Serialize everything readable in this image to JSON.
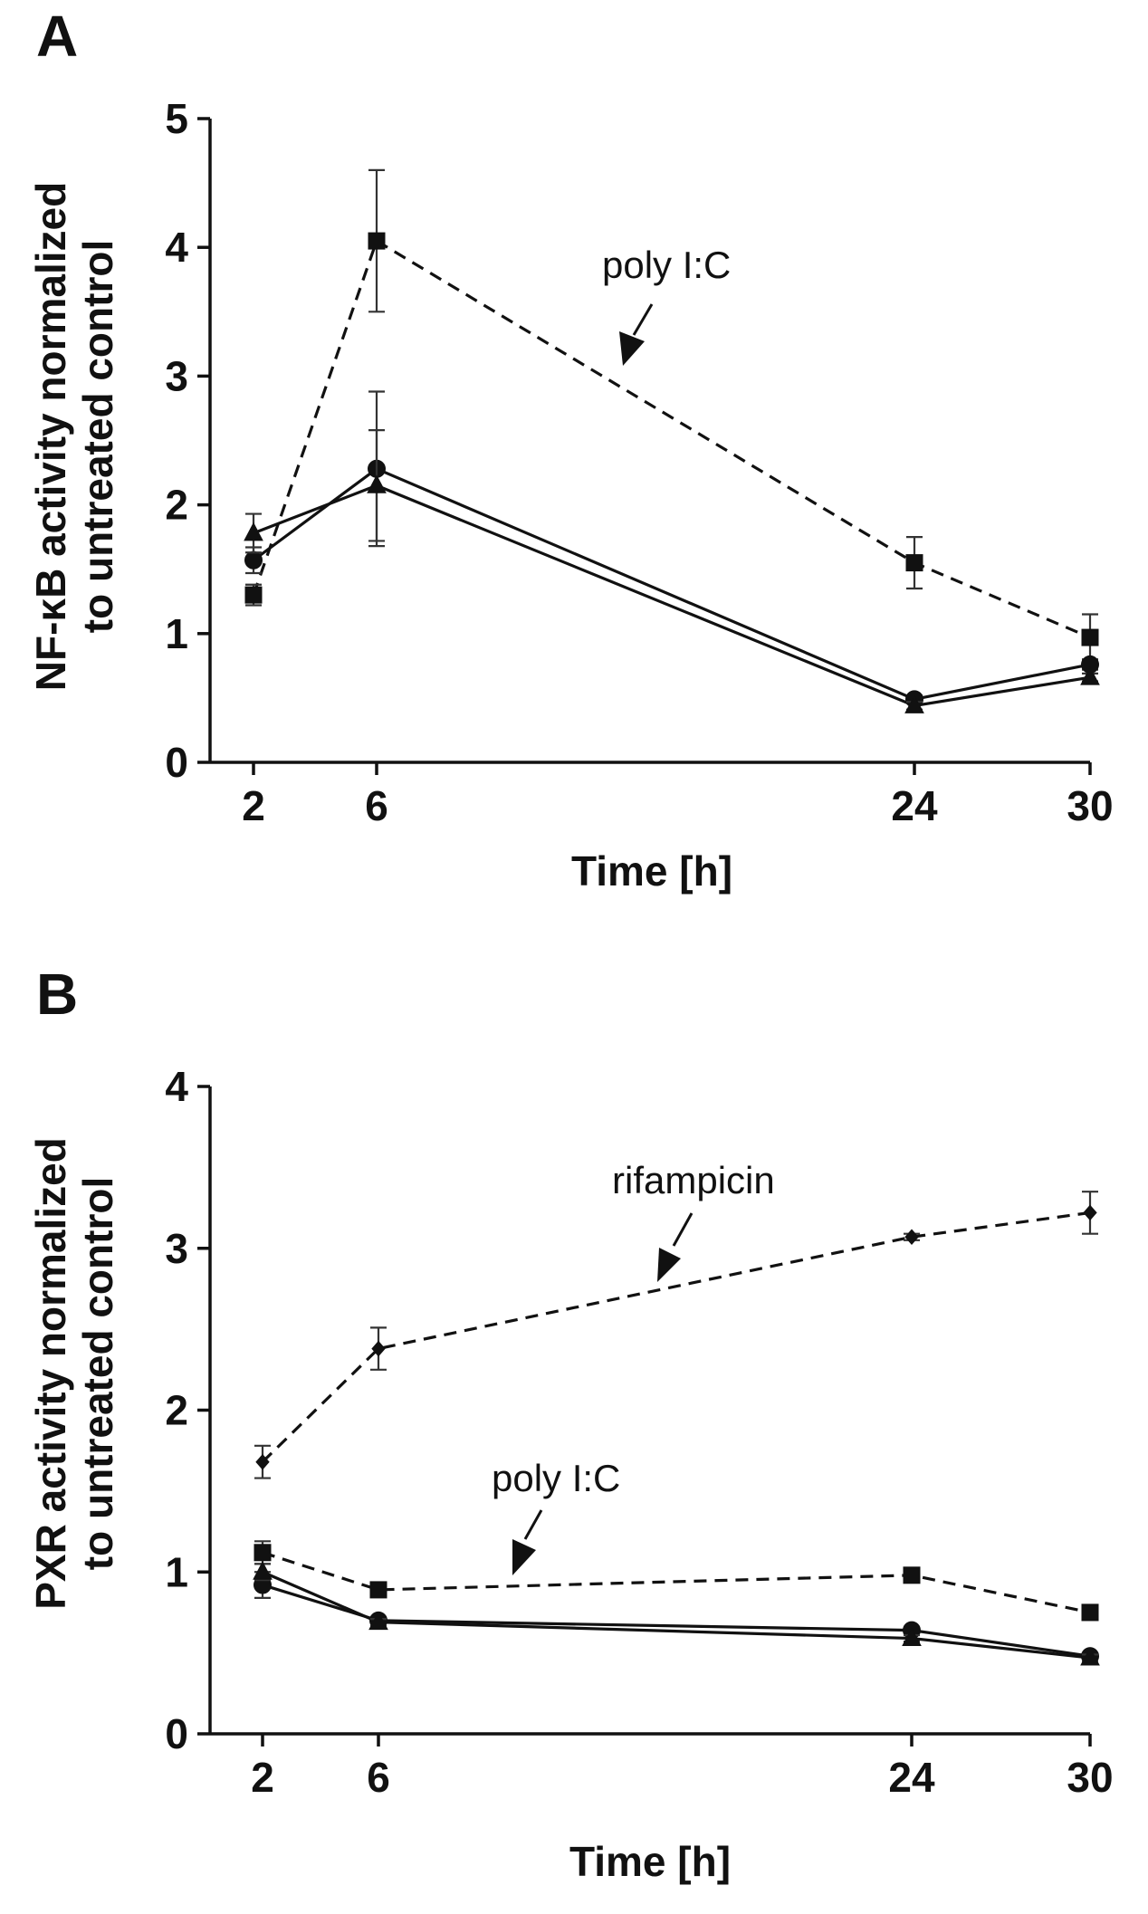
{
  "chart_data": [
    {
      "panel": "A",
      "type": "line",
      "title": "",
      "xlabel": "Time [h]",
      "ylabel_lines": [
        "NF-κB activity normalized",
        "to untreated control"
      ],
      "x": [
        2,
        6,
        24,
        30
      ],
      "x_ticks": [
        2,
        6,
        24,
        30
      ],
      "xlim": [
        0,
        30
      ],
      "y_ticks": [
        0,
        1,
        2,
        3,
        4,
        5
      ],
      "ylim": [
        0,
        5
      ],
      "grid": false,
      "series": [
        {
          "name": "poly I:C",
          "marker": "square",
          "style": "dashed",
          "values": [
            1.3,
            4.05,
            1.55,
            0.97
          ],
          "errors": [
            0.08,
            0.55,
            0.2,
            0.18
          ]
        },
        {
          "name": "circle series",
          "marker": "circle",
          "style": "solid",
          "values": [
            1.57,
            2.28,
            0.49,
            0.76
          ],
          "errors": [
            0.1,
            0.6,
            0.03,
            0.04
          ]
        },
        {
          "name": "triangle series",
          "marker": "triangle",
          "style": "solid",
          "values": [
            1.78,
            2.15,
            0.44,
            0.66
          ],
          "errors": [
            0.15,
            0.43,
            0.03,
            0.03
          ]
        }
      ],
      "annotations": [
        {
          "text": "poly I:C",
          "target_series": "poly I:C"
        }
      ]
    },
    {
      "panel": "B",
      "type": "line",
      "title": "",
      "xlabel": "Time [h]",
      "ylabel_lines": [
        "PXR activity normalized",
        "to untreated control"
      ],
      "x": [
        2,
        6,
        24,
        30
      ],
      "x_ticks": [
        2,
        6,
        24,
        30
      ],
      "xlim": [
        0,
        30
      ],
      "y_ticks": [
        0,
        1,
        2,
        3,
        4
      ],
      "ylim": [
        0,
        4
      ],
      "grid": false,
      "series": [
        {
          "name": "rifampicin",
          "marker": "diamond",
          "style": "dashed",
          "values": [
            1.68,
            2.38,
            3.07,
            3.22
          ],
          "errors": [
            0.1,
            0.13,
            0.02,
            0.13
          ]
        },
        {
          "name": "poly I:C",
          "marker": "square",
          "style": "dashed",
          "values": [
            1.12,
            0.89,
            0.98,
            0.75
          ],
          "errors": [
            0.07,
            0.03,
            0.02,
            0.02
          ]
        },
        {
          "name": "circle series",
          "marker": "circle",
          "style": "solid",
          "values": [
            0.92,
            0.7,
            0.64,
            0.48
          ],
          "errors": [
            0.08,
            0.02,
            0.02,
            0.02
          ]
        },
        {
          "name": "triangle series",
          "marker": "triangle",
          "style": "solid",
          "values": [
            1.0,
            0.69,
            0.59,
            0.47
          ],
          "errors": [
            0.05,
            0.02,
            0.02,
            0.02
          ]
        }
      ],
      "annotations": [
        {
          "text": "rifampicin",
          "target_series": "rifampicin"
        },
        {
          "text": "poly I:C",
          "target_series": "poly I:C"
        }
      ]
    }
  ]
}
